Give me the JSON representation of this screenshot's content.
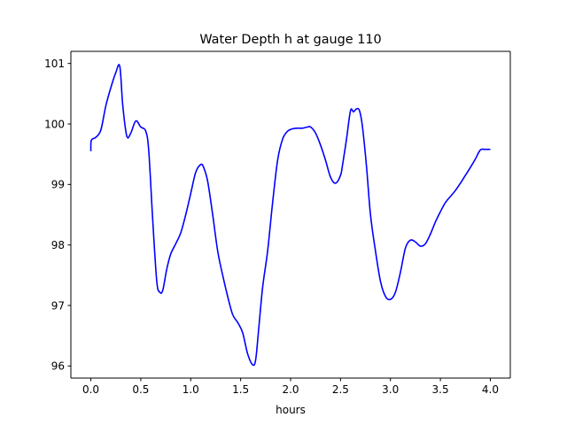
{
  "chart_data": {
    "type": "line",
    "title": "Water Depth h at gauge 110",
    "xlabel": "hours",
    "ylabel": "",
    "xlim": [
      -0.2,
      4.2
    ],
    "ylim": [
      95.8,
      101.2
    ],
    "x_ticks": [
      0.0,
      0.5,
      1.0,
      1.5,
      2.0,
      2.5,
      3.0,
      3.5,
      4.0
    ],
    "x_tick_labels": [
      "0.0",
      "0.5",
      "1.0",
      "1.5",
      "2.0",
      "2.5",
      "3.0",
      "3.5",
      "4.0"
    ],
    "y_ticks": [
      96,
      97,
      98,
      99,
      100,
      101
    ],
    "y_tick_labels": [
      "96",
      "97",
      "98",
      "99",
      "100",
      "101"
    ],
    "grid": false,
    "legend": "none",
    "series": [
      {
        "color": "#0000ff",
        "x": [
          0.0,
          0.005,
          0.05,
          0.1,
          0.15,
          0.2,
          0.25,
          0.29,
          0.32,
          0.36,
          0.4,
          0.45,
          0.5,
          0.55,
          0.58,
          0.62,
          0.66,
          0.69,
          0.72,
          0.76,
          0.8,
          0.85,
          0.9,
          0.95,
          1.0,
          1.05,
          1.1,
          1.13,
          1.17,
          1.22,
          1.27,
          1.32,
          1.37,
          1.42,
          1.47,
          1.52,
          1.57,
          1.62,
          1.65,
          1.68,
          1.72,
          1.77,
          1.82,
          1.87,
          1.92,
          1.97,
          2.02,
          2.07,
          2.12,
          2.17,
          2.2,
          2.25,
          2.3,
          2.35,
          2.4,
          2.45,
          2.5,
          2.52,
          2.56,
          2.6,
          2.63,
          2.66,
          2.69,
          2.72,
          2.76,
          2.8,
          2.85,
          2.9,
          2.95,
          3.0,
          3.05,
          3.1,
          3.15,
          3.2,
          3.25,
          3.3,
          3.35,
          3.4,
          3.45,
          3.5,
          3.55,
          3.6,
          3.65,
          3.7,
          3.75,
          3.8,
          3.85,
          3.9,
          3.95,
          4.0
        ],
        "y": [
          99.55,
          99.73,
          99.78,
          99.9,
          100.3,
          100.6,
          100.85,
          100.95,
          100.3,
          99.8,
          99.85,
          100.05,
          99.95,
          99.88,
          99.55,
          98.4,
          97.4,
          97.22,
          97.25,
          97.6,
          97.85,
          98.02,
          98.2,
          98.5,
          98.85,
          99.2,
          99.33,
          99.28,
          99.05,
          98.5,
          97.9,
          97.5,
          97.15,
          96.85,
          96.72,
          96.55,
          96.2,
          96.02,
          96.1,
          96.6,
          97.3,
          97.9,
          98.7,
          99.4,
          99.75,
          99.88,
          99.92,
          99.93,
          99.93,
          99.95,
          99.95,
          99.85,
          99.65,
          99.4,
          99.12,
          99.02,
          99.15,
          99.32,
          99.75,
          100.22,
          100.2,
          100.25,
          100.22,
          99.95,
          99.3,
          98.5,
          97.9,
          97.4,
          97.15,
          97.1,
          97.22,
          97.55,
          97.95,
          98.08,
          98.05,
          97.98,
          98.02,
          98.18,
          98.38,
          98.55,
          98.7,
          98.8,
          98.9,
          99.02,
          99.15,
          99.28,
          99.42,
          99.57,
          99.58,
          99.58
        ]
      }
    ]
  }
}
